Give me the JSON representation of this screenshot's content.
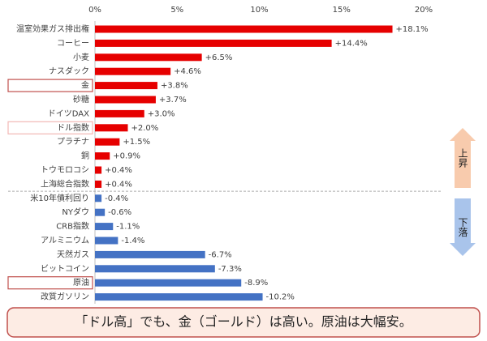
{
  "chart_data": {
    "type": "bar",
    "orientation": "horizontal",
    "categories": [
      "温室効果ガス排出権",
      "コーヒー",
      "小麦",
      "ナスダック",
      "金",
      "砂糖",
      "ドイツDAX",
      "ドル指数",
      "プラチナ",
      "銅",
      "トウモロコシ",
      "上海総合指数",
      "米10年債利回り",
      "NYダウ",
      "CRB指数",
      "アルミニウム",
      "天然ガス",
      "ビットコイン",
      "原油",
      "改質ガソリン"
    ],
    "values": [
      18.1,
      14.4,
      6.5,
      4.6,
      3.8,
      3.7,
      3.0,
      2.0,
      1.5,
      0.9,
      0.4,
      0.4,
      -0.4,
      -0.6,
      -1.1,
      -1.4,
      -6.7,
      -7.3,
      -8.9,
      -10.2
    ],
    "value_labels": [
      "+18.1%",
      "+14.4%",
      "+6.5%",
      "+4.6%",
      "+3.8%",
      "+3.7%",
      "+3.0%",
      "+2.0%",
      "+1.5%",
      "+0.9%",
      "+0.4%",
      "+0.4%",
      "-0.4%",
      "-0.6%",
      "-1.1%",
      "-1.4%",
      "-6.7%",
      "-7.3%",
      "-8.9%",
      "-10.2%"
    ],
    "colors": {
      "positive": "#e60000",
      "negative": "#4472c4"
    },
    "xlim": [
      0,
      20
    ],
    "xticks": [
      {
        "value": 0,
        "label": "0%"
      },
      {
        "value": 5,
        "label": "5%"
      },
      {
        "value": 10,
        "label": "10%"
      },
      {
        "value": 15,
        "label": "15%"
      },
      {
        "value": 20,
        "label": "20%"
      }
    ],
    "grid": false,
    "highlight": [
      {
        "category": "金",
        "color": "#c0504d"
      },
      {
        "category": "ドル指数",
        "color": "#f2b8b5"
      },
      {
        "category": "原油",
        "color": "#c0504d"
      }
    ],
    "annotations": [
      {
        "text": "上昇",
        "color": "#f8cbad",
        "direction": "up"
      },
      {
        "text": "下落",
        "color": "#a9c4eb",
        "direction": "down"
      }
    ],
    "caption": "「ドル高」でも、金（ゴールド）は高い。原油は大幅安。"
  }
}
